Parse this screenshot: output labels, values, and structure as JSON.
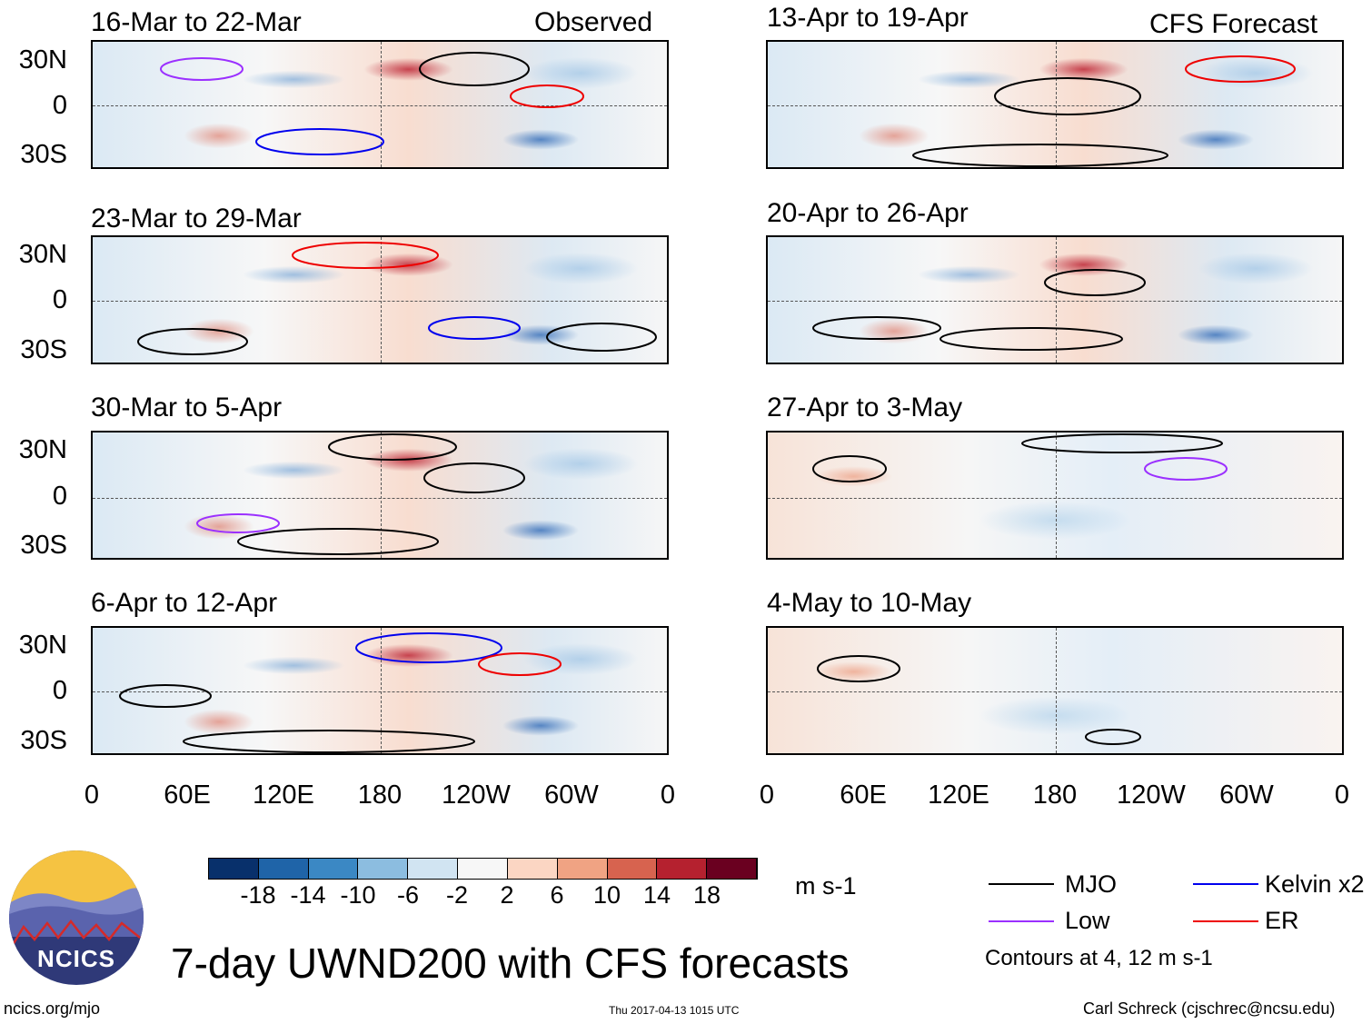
{
  "panels": {
    "observed_label": "Observed",
    "forecast_label": "CFS Forecast",
    "left": [
      {
        "title": "16-Mar to 22-Mar"
      },
      {
        "title": "23-Mar to 29-Mar"
      },
      {
        "title": "30-Mar to 5-Apr"
      },
      {
        "title": "6-Apr to 12-Apr"
      }
    ],
    "right": [
      {
        "title": "13-Apr to 19-Apr"
      },
      {
        "title": "20-Apr to 26-Apr"
      },
      {
        "title": "27-Apr to 3-May"
      },
      {
        "title": "4-May to 10-May"
      }
    ]
  },
  "axes": {
    "y_ticks": [
      "30N",
      "0",
      "30S"
    ],
    "x_ticks": [
      "0",
      "60E",
      "120E",
      "180",
      "120W",
      "60W",
      "0"
    ]
  },
  "colorbar": {
    "colors": [
      "#08306b",
      "#1f64a8",
      "#3b88c4",
      "#8cbde0",
      "#d1e4f2",
      "#f7f7f7",
      "#fbd6c3",
      "#f0a383",
      "#d7634f",
      "#b5212f",
      "#6a0020"
    ],
    "labels": [
      "-18",
      "-14",
      "-10",
      "-6",
      "-2",
      "2",
      "6",
      "10",
      "14",
      "18"
    ],
    "units": "m s-1"
  },
  "legend": {
    "items": [
      {
        "label": "MJO",
        "color": "#000000"
      },
      {
        "label": "Kelvin x2",
        "color": "#0000ee"
      },
      {
        "label": "Low",
        "color": "#9b30ff"
      },
      {
        "label": "ER",
        "color": "#ee0000"
      }
    ],
    "contours_note": "Contours at 4, 12 m s-1"
  },
  "footer": {
    "logo_text": "NCICS",
    "main_title": "7-day UWND200 with CFS forecasts",
    "website": "ncics.org/mjo",
    "timestamp": "Thu 2017-04-13 1015 UTC",
    "author": "Carl Schreck (cjschrec@ncsu.edu)"
  }
}
